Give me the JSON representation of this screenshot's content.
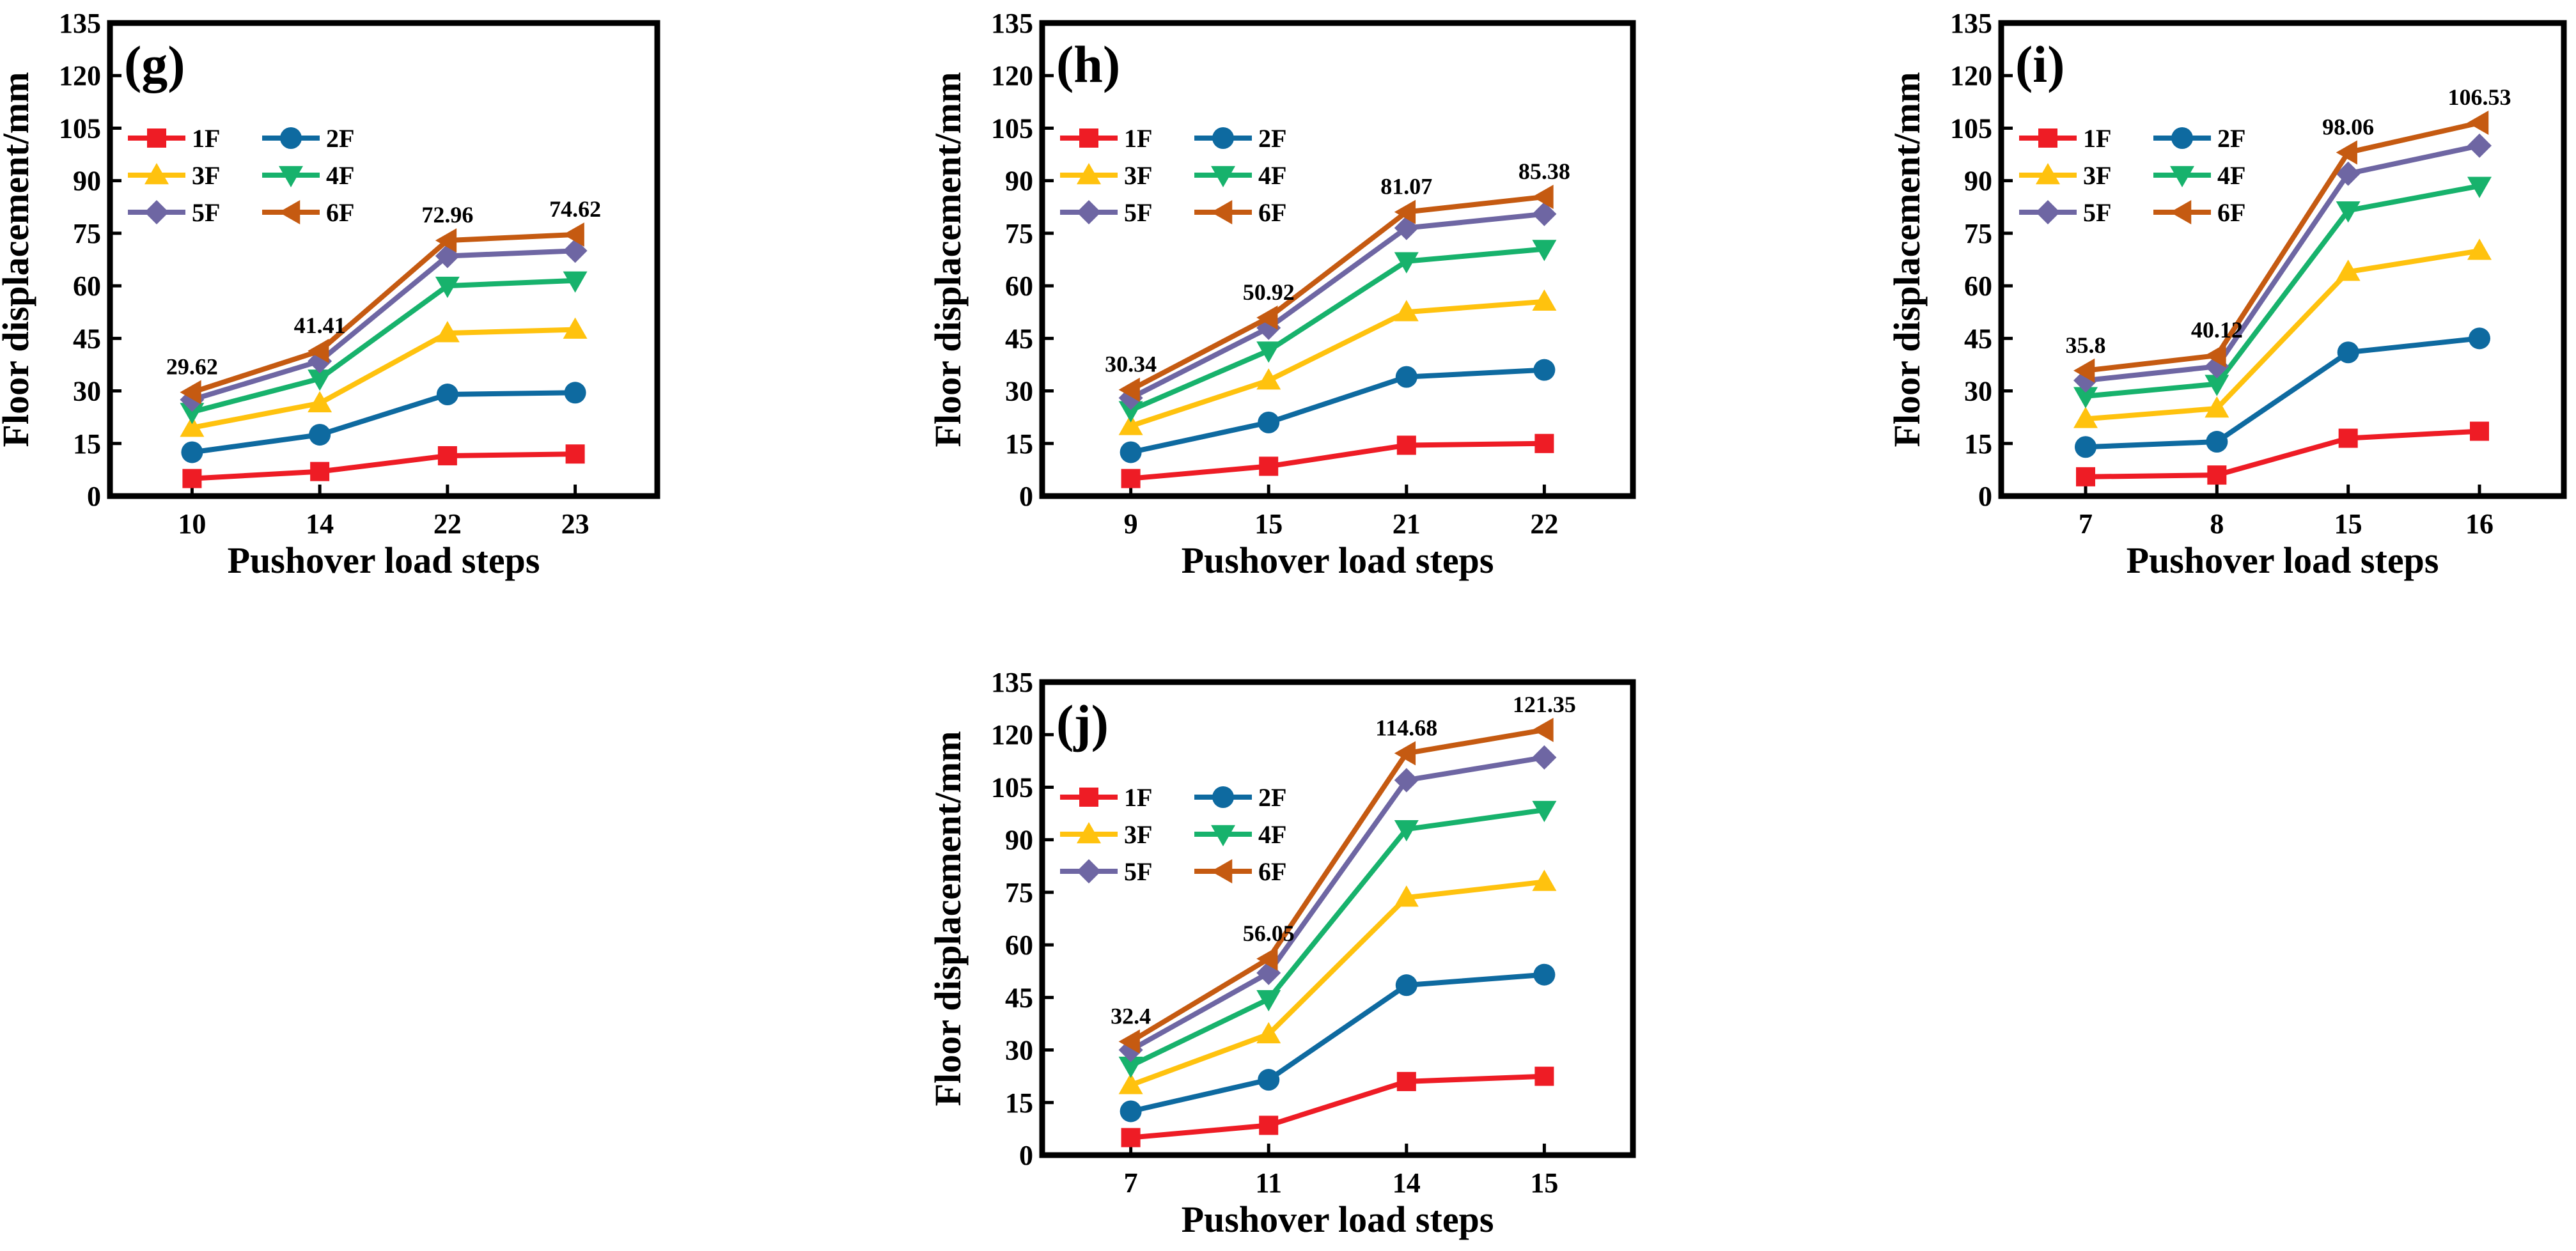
{
  "figure": {
    "colors": {
      "1F": "#ee1c25",
      "2F": "#0e6aa0",
      "3F": "#ffc20e",
      "4F": "#17b26c",
      "5F": "#6e66a3",
      "6F": "#c55a11"
    },
    "markers": {
      "1F": "square",
      "2F": "circle",
      "3F": "triangle-up",
      "4F": "triangle-down",
      "5F": "diamond",
      "6F": "triangle-left"
    }
  },
  "chart_data": [
    {
      "type": "line",
      "panel": "(g)",
      "title": "",
      "xlabel": "Pushover load steps",
      "ylabel": "Floor displacement/mm",
      "ylim": [
        0,
        135
      ],
      "yticks": [
        "0",
        "15",
        "30",
        "45",
        "60",
        "75",
        "90",
        "105",
        "120",
        "135"
      ],
      "categories": [
        "10",
        "14",
        "22",
        "23"
      ],
      "series": [
        {
          "name": "1F",
          "values": [
            5,
            7,
            11.5,
            12
          ]
        },
        {
          "name": "2F",
          "values": [
            12.5,
            17.5,
            29,
            29.5
          ]
        },
        {
          "name": "3F",
          "values": [
            19.5,
            26.5,
            46.5,
            47.5
          ]
        },
        {
          "name": "4F",
          "values": [
            24,
            33.5,
            60,
            61.5
          ]
        },
        {
          "name": "5F",
          "values": [
            27.5,
            38.5,
            68.5,
            70
          ]
        },
        {
          "name": "6F",
          "values": [
            29.62,
            41.41,
            72.96,
            74.62
          ]
        }
      ],
      "annotations": [
        "29.62",
        "41.41",
        "72.96",
        "74.62"
      ],
      "legend": "top-left, 2 columns"
    },
    {
      "type": "line",
      "panel": "(h)",
      "title": "",
      "xlabel": "Pushover load steps",
      "ylabel": "Floor displacement/mm",
      "ylim": [
        0,
        135
      ],
      "yticks": [
        "0",
        "15",
        "30",
        "45",
        "60",
        "75",
        "90",
        "105",
        "120",
        "135"
      ],
      "categories": [
        "9",
        "15",
        "21",
        "22"
      ],
      "series": [
        {
          "name": "1F",
          "values": [
            5,
            8.5,
            14.5,
            15
          ]
        },
        {
          "name": "2F",
          "values": [
            12.5,
            21,
            34,
            36
          ]
        },
        {
          "name": "3F",
          "values": [
            20,
            33,
            52.5,
            55.5
          ]
        },
        {
          "name": "4F",
          "values": [
            24.5,
            41.5,
            67,
            70.5
          ]
        },
        {
          "name": "5F",
          "values": [
            28,
            48,
            76.5,
            80.5
          ]
        },
        {
          "name": "6F",
          "values": [
            30.34,
            50.92,
            81.07,
            85.38
          ]
        }
      ],
      "annotations": [
        "30.34",
        "50.92",
        "81.07",
        "85.38"
      ],
      "legend": "top-left, 2 columns"
    },
    {
      "type": "line",
      "panel": "(i)",
      "title": "",
      "xlabel": "Pushover load steps",
      "ylabel": "Floor displacement/mm",
      "ylim": [
        0,
        135
      ],
      "yticks": [
        "0",
        "15",
        "30",
        "45",
        "60",
        "75",
        "90",
        "105",
        "120",
        "135"
      ],
      "categories": [
        "7",
        "8",
        "15",
        "16"
      ],
      "series": [
        {
          "name": "1F",
          "values": [
            5.5,
            6,
            16.5,
            18.5
          ]
        },
        {
          "name": "2F",
          "values": [
            14,
            15.5,
            41,
            45
          ]
        },
        {
          "name": "3F",
          "values": [
            22,
            25,
            64,
            70
          ]
        },
        {
          "name": "4F",
          "values": [
            28.5,
            32,
            81.5,
            88.5
          ]
        },
        {
          "name": "5F",
          "values": [
            33,
            37,
            92,
            100
          ]
        },
        {
          "name": "6F",
          "values": [
            35.8,
            40.12,
            98.06,
            106.53
          ]
        }
      ],
      "annotations": [
        "35.8",
        "40.12",
        "98.06",
        "106.53"
      ],
      "legend": "top-left, 2 columns"
    },
    {
      "type": "line",
      "panel": "(j)",
      "title": "",
      "xlabel": "Pushover load steps",
      "ylabel": "Floor displacement/mm",
      "ylim": [
        0,
        135
      ],
      "yticks": [
        "0",
        "15",
        "30",
        "45",
        "60",
        "75",
        "90",
        "105",
        "120",
        "135"
      ],
      "categories": [
        "7",
        "11",
        "14",
        "15"
      ],
      "series": [
        {
          "name": "1F",
          "values": [
            5,
            8.5,
            21,
            22.5
          ]
        },
        {
          "name": "2F",
          "values": [
            12.5,
            21.5,
            48.5,
            51.5
          ]
        },
        {
          "name": "3F",
          "values": [
            20,
            34.5,
            73.5,
            78
          ]
        },
        {
          "name": "4F",
          "values": [
            25.5,
            44.5,
            93,
            98.5
          ]
        },
        {
          "name": "5F",
          "values": [
            30,
            52,
            107,
            113.5
          ]
        },
        {
          "name": "6F",
          "values": [
            32.4,
            56.05,
            114.68,
            121.35
          ]
        }
      ],
      "annotations": [
        "32.4",
        "56.05",
        "114.68",
        "121.35"
      ],
      "legend": "top-left, 2 columns"
    }
  ]
}
